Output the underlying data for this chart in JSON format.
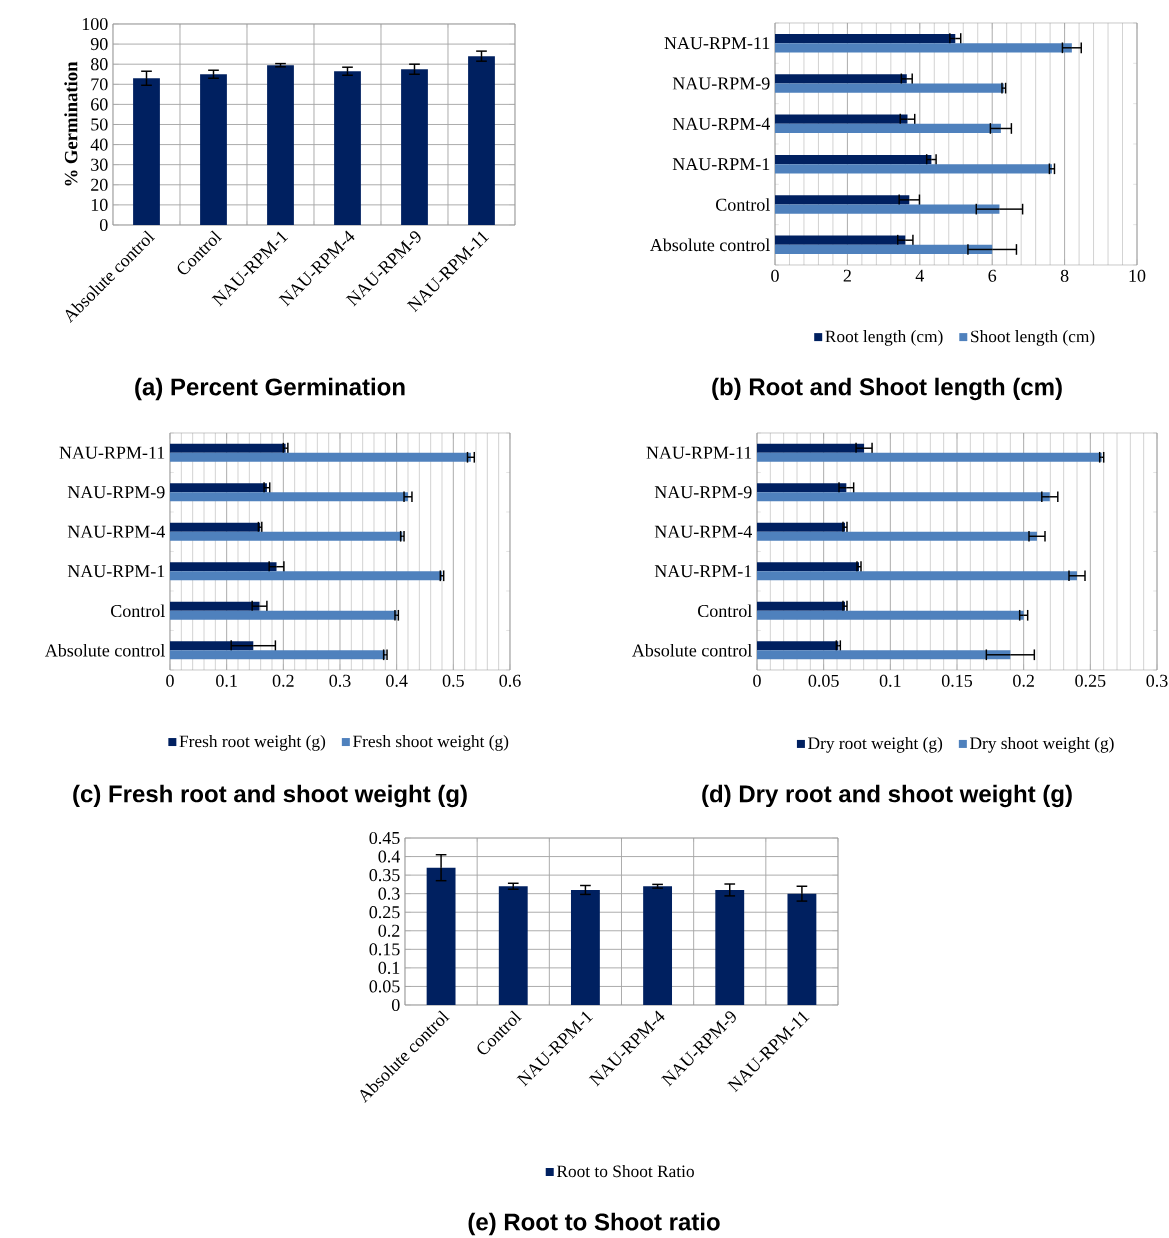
{
  "chart_data": [
    {
      "type": "bar",
      "title": "(a) Percent Germination",
      "ylabel": "% Germination",
      "categories": [
        "Absolute control",
        "Control",
        "NAU-RPM-1",
        "NAU-RPM-4",
        "NAU-RPM-9",
        "NAU-RPM-11"
      ],
      "values": [
        73,
        75,
        79.5,
        76.5,
        77.5,
        84
      ],
      "errors": [
        3.5,
        2,
        0.8,
        2,
        2.5,
        2.5
      ],
      "color": "#002060",
      "ylim": [
        0,
        100
      ],
      "yticks": [
        0,
        10,
        20,
        30,
        40,
        50,
        60,
        70,
        80,
        90,
        100
      ],
      "grid": true
    },
    {
      "type": "bar",
      "title": "(b) Root and Shoot length (cm)",
      "orientation": "horizontal",
      "categories": [
        "NAU-RPM-11",
        "NAU-RPM-9",
        "NAU-RPM-4",
        "NAU-RPM-1",
        "Control",
        "Absolute control"
      ],
      "series": [
        {
          "name": "Root length (cm)",
          "color": "#002060",
          "values": [
            4.98,
            3.64,
            3.66,
            4.32,
            3.71,
            3.6
          ],
          "errors": [
            0.15,
            0.15,
            0.2,
            0.13,
            0.28,
            0.21
          ]
        },
        {
          "name": "Shoot length (cm)",
          "color": "#4f81bd",
          "values": [
            8.2,
            6.32,
            6.24,
            7.65,
            6.2,
            6.0
          ],
          "errors": [
            0.26,
            0.05,
            0.29,
            0.07,
            0.64,
            0.67
          ]
        }
      ],
      "xlim": [
        0,
        10
      ],
      "xticks": [
        0,
        2,
        4,
        6,
        8,
        10
      ],
      "grid": "x",
      "legend": "bottom"
    },
    {
      "type": "bar",
      "title": "(c) Fresh root and shoot weight (g)",
      "orientation": "horizontal",
      "categories": [
        "NAU-RPM-11",
        "NAU-RPM-9",
        "NAU-RPM-4",
        "NAU-RPM-1",
        "Control",
        "Absolute control"
      ],
      "series": [
        {
          "name": "Fresh root weight (g)",
          "color": "#002060",
          "values": [
            0.204,
            0.171,
            0.159,
            0.188,
            0.158,
            0.147
          ],
          "errors": [
            0.004,
            0.005,
            0.003,
            0.013,
            0.013,
            0.039
          ]
        },
        {
          "name": "Fresh shoot weight (g)",
          "color": "#4f81bd",
          "values": [
            0.531,
            0.42,
            0.41,
            0.48,
            0.4,
            0.38
          ],
          "errors": [
            0.006,
            0.007,
            0.003,
            0.003,
            0.003,
            0.003
          ]
        }
      ],
      "xlim": [
        0,
        0.6
      ],
      "xticks": [
        0,
        0.1,
        0.2,
        0.3,
        0.4,
        0.5,
        0.6
      ],
      "grid": "x",
      "legend": "bottom"
    },
    {
      "type": "bar",
      "title": "(d) Dry root and shoot weight (g)",
      "orientation": "horizontal",
      "categories": [
        "NAU-RPM-11",
        "NAU-RPM-9",
        "NAU-RPM-4",
        "NAU-RPM-1",
        "Control",
        "Absolute control"
      ],
      "series": [
        {
          "name": "Dry root weight (g)",
          "color": "#002060",
          "values": [
            0.0803,
            0.067,
            0.066,
            0.0765,
            0.066,
            0.061
          ],
          "errors": [
            0.006,
            0.0055,
            0.0015,
            0.0015,
            0.0015,
            0.0015
          ]
        },
        {
          "name": "Dry shoot weight (g)",
          "color": "#4f81bd",
          "values": [
            0.2585,
            0.2196,
            0.21,
            0.24,
            0.2,
            0.19
          ],
          "errors": [
            0.0015,
            0.006,
            0.006,
            0.006,
            0.003,
            0.018
          ]
        }
      ],
      "xlim": [
        0,
        0.3
      ],
      "xticks": [
        0,
        0.05,
        0.1,
        0.15,
        0.2,
        0.25,
        0.3
      ],
      "grid": "x",
      "legend": "bottom"
    },
    {
      "type": "bar",
      "title": "(e) Root to Shoot ratio",
      "categories": [
        "Absolute control",
        "Control",
        "NAU-RPM-1",
        "NAU-RPM-4",
        "NAU-RPM-9",
        "NAU-RPM-11"
      ],
      "series": [
        {
          "name": "Root to Shoot Ratio",
          "color": "#002060",
          "values": [
            0.37,
            0.32,
            0.31,
            0.32,
            0.31,
            0.3
          ],
          "errors": [
            0.035,
            0.008,
            0.012,
            0.005,
            0.016,
            0.02
          ]
        }
      ],
      "ylim": [
        0,
        0.45
      ],
      "yticks": [
        0,
        0.05,
        0.1,
        0.15,
        0.2,
        0.25,
        0.3,
        0.35,
        0.4,
        0.45
      ],
      "grid": true,
      "legend": "bottom"
    }
  ]
}
